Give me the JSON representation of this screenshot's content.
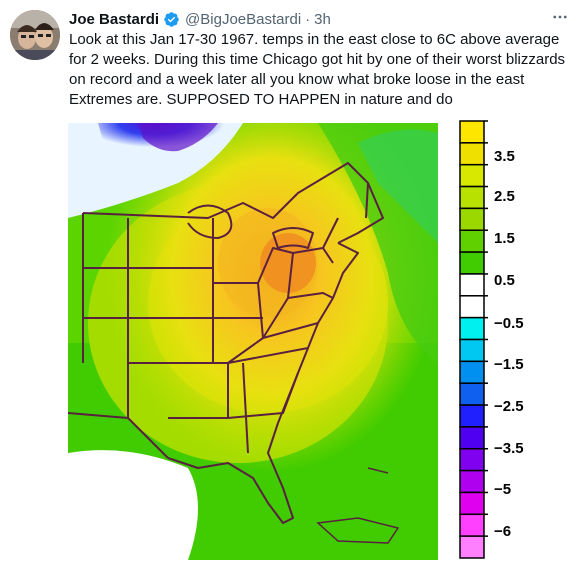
{
  "tweet": {
    "display_name": "Joe Bastardi",
    "handle": "@BigJoeBastardi",
    "separator": "·",
    "time": "3h",
    "text": "Look at this Jan 17-30 1967. temps in the east close to 6C above average for 2 weeks. During this time Chicago got hit by one of their worst blizzards on record and a week later all you know what broke loose in the east Extremes are. SUPPOSED TO HAPPEN in nature and do"
  },
  "colors": {
    "verified": "#1d9bf0",
    "text": "#0f1419",
    "secondary": "#536471"
  },
  "icons": {
    "verified": "verified-badge-icon",
    "more": "more-horizontal-icon"
  },
  "map_legend": {
    "labels": [
      "3.5",
      "2.5",
      "1.5",
      "0.5",
      "−0.5",
      "−1.5",
      "−2.5",
      "−3.5",
      "−5",
      "−6"
    ],
    "swatch_colors": [
      "#ffe600",
      "#f0e000",
      "#d8e800",
      "#b8e000",
      "#9ad800",
      "#60d000",
      "#40cc00",
      "#ffffff",
      "#ffffff",
      "#00f0f0",
      "#00c8f0",
      "#0090f0",
      "#1060f0",
      "#2020ff",
      "#5000f0",
      "#8000f0",
      "#b000f0",
      "#e000f0",
      "#ff40ff",
      "#ff80ff"
    ]
  }
}
